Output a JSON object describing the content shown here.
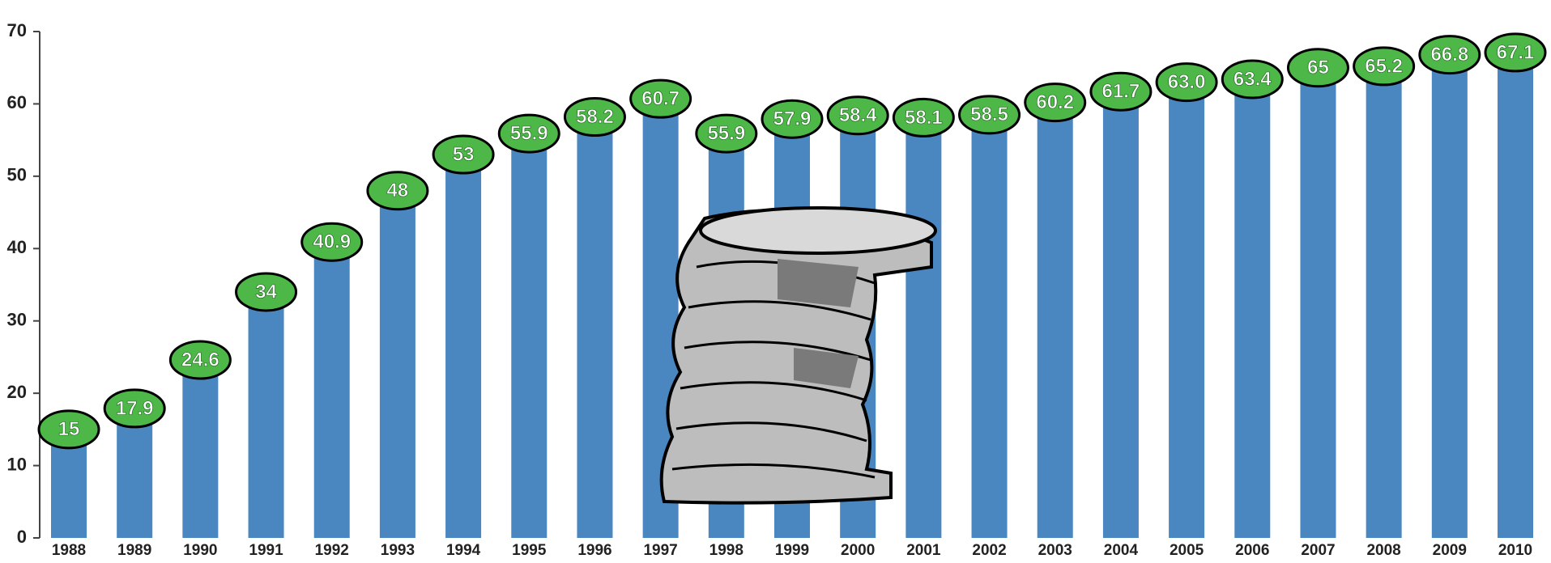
{
  "chart_data": {
    "type": "bar",
    "categories": [
      "1988",
      "1989",
      "1990",
      "1991",
      "1992",
      "1993",
      "1994",
      "1995",
      "1996",
      "1997",
      "1998",
      "1999",
      "2000",
      "2001",
      "2002",
      "2003",
      "2004",
      "2005",
      "2006",
      "2007",
      "2008",
      "2009",
      "2010"
    ],
    "values": [
      15,
      17.9,
      24.6,
      34,
      40.9,
      48,
      53,
      55.9,
      58.2,
      60.7,
      55.9,
      57.9,
      58.4,
      58.1,
      58.5,
      60.2,
      61.7,
      63.0,
      63.4,
      65,
      65.2,
      66.8,
      67.1
    ],
    "value_labels": [
      "15",
      "17.9",
      "24.6",
      "34",
      "40.9",
      "48",
      "53",
      "55.9",
      "58.2",
      "60.7",
      "55.9",
      "57.9",
      "58.4",
      "58.1",
      "58.5",
      "60.2",
      "61.7",
      "63.0",
      "63.4",
      "65",
      "65.2",
      "66.8",
      "67.1"
    ],
    "color": "#4a86bf",
    "label_color": "#4db848",
    "ylim": [
      0,
      70
    ],
    "yticks": [
      0,
      10,
      20,
      30,
      40,
      50,
      60,
      70
    ]
  }
}
